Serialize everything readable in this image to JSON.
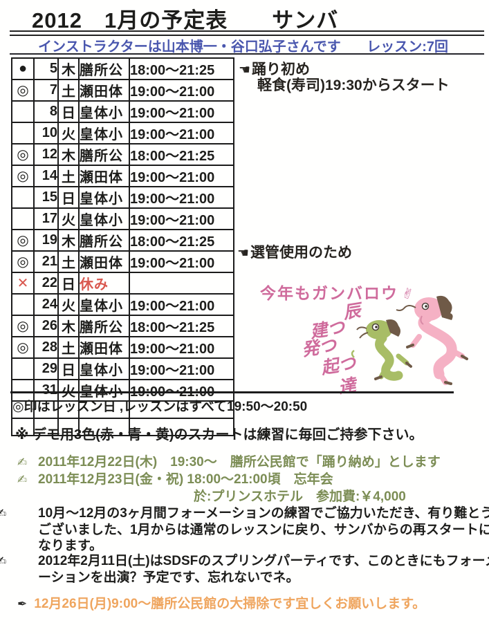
{
  "header": {
    "title": "2012　1月の予定表　　サンバ",
    "instructor_line": "インストラクターは山本博一・谷口弘子さんです",
    "lesson_count": "レッスン:7回"
  },
  "icons": {
    "pointing_hand": "☚",
    "writing_hand": "✍",
    "pen_nib": "✒",
    "victory_hand": "✌"
  },
  "colors": {
    "subtitle_blue": "#4a57ae",
    "holiday_red": "#d9574e",
    "cheer_pink": "#cf6b9c",
    "dragon_pink": "#f5b1c4",
    "dragon_green": "#a8bd66",
    "mane_brown": "#6f5a47",
    "note_green": "#7c8d55",
    "note_orange": "#efa55e"
  },
  "schedule_table": {
    "rows": [
      {
        "mark": "●",
        "date": "5",
        "day": "木",
        "place": "膳所公",
        "time": "18:00〜21:25",
        "holiday": false
      },
      {
        "mark": "◎",
        "date": "7",
        "day": "土",
        "place": "瀬田体",
        "time": "19:00〜21:00",
        "holiday": false
      },
      {
        "mark": "",
        "date": "8",
        "day": "日",
        "place": "皇体小",
        "time": "19:00〜21:00",
        "holiday": false
      },
      {
        "mark": "",
        "date": "10",
        "day": "火",
        "place": "皇体小",
        "time": "19:00〜21:00",
        "holiday": false
      },
      {
        "mark": "◎",
        "date": "12",
        "day": "木",
        "place": "膳所公",
        "time": "18:00〜21:25",
        "holiday": false
      },
      {
        "mark": "◎",
        "date": "14",
        "day": "土",
        "place": "瀬田体",
        "time": "19:00〜21:00",
        "holiday": false
      },
      {
        "mark": "",
        "date": "15",
        "day": "日",
        "place": "皇体小",
        "time": "19:00〜21:00",
        "holiday": false
      },
      {
        "mark": "",
        "date": "17",
        "day": "火",
        "place": "皇体小",
        "time": "19:00〜21:00",
        "holiday": false
      },
      {
        "mark": "◎",
        "date": "19",
        "day": "木",
        "place": "膳所公",
        "time": "18:00〜21:25",
        "holiday": false
      },
      {
        "mark": "◎",
        "date": "21",
        "day": "土",
        "place": "瀬田体",
        "time": "19:00〜21:00",
        "holiday": false
      },
      {
        "mark": "✕",
        "date": "22",
        "day": "日",
        "place": "休み",
        "time": "",
        "holiday": true
      },
      {
        "mark": "",
        "date": "24",
        "day": "火",
        "place": "皇体小",
        "time": "19:00〜21:00",
        "holiday": false
      },
      {
        "mark": "◎",
        "date": "26",
        "day": "木",
        "place": "膳所公",
        "time": "18:00〜21:25",
        "holiday": false
      },
      {
        "mark": "◎",
        "date": "28",
        "day": "土",
        "place": "瀬田体",
        "time": "19:00〜21:00",
        "holiday": false
      },
      {
        "mark": "",
        "date": "29",
        "day": "日",
        "place": "皇体小",
        "time": "19:00〜21:00",
        "holiday": false
      },
      {
        "mark": "",
        "date": "31",
        "day": "火",
        "place": "皇体小",
        "time": "19:00〜21:00",
        "holiday": false
      },
      {
        "mark": "",
        "date": "",
        "day": "",
        "place": "",
        "time": "",
        "holiday": false
      },
      {
        "mark": "",
        "date": "",
        "day": "",
        "place": "",
        "time": "",
        "holiday": false
      }
    ]
  },
  "annotations": {
    "first_dance": "踊り初め",
    "snack": "軽食(寿司)19:30からスタート",
    "election": "選管使用のため",
    "cheer": "今年もガンバロウ",
    "dragon_words": [
      "辰",
      "建つ",
      "発つ",
      "起つ",
      "達"
    ]
  },
  "notes": {
    "legend": "◎印はレッスン日 ,レッスンはすべて19:50〜20:50",
    "skirt": "※ デモ用3色(赤・青・黄)のスカートは練習に毎回ご持参下さい。",
    "green": [
      "2011年12月22日(木)　19:30〜　膳所公民館で「踊り納め」とします",
      "2011年12月23日(金・祝) 18:00〜21:00頃　忘年会"
    ],
    "green_sub": "於:プリンスホテル　参加費:￥4,000",
    "black": [
      "10月〜12月の3ヶ月間フォーメーションの練習でご協力いただき、有り難とうございました、1月からは通常のレッスンに戻り、サンバからの再スタートになります。",
      "2012年2月11日(土)はSDSFのスプリングパーティです、このときにもフォーメーションを出演？予定です、忘れないでネ。"
    ],
    "orange": "12月26日(月)9:00〜膳所公民館の大掃除です宜しくお願いします。"
  }
}
